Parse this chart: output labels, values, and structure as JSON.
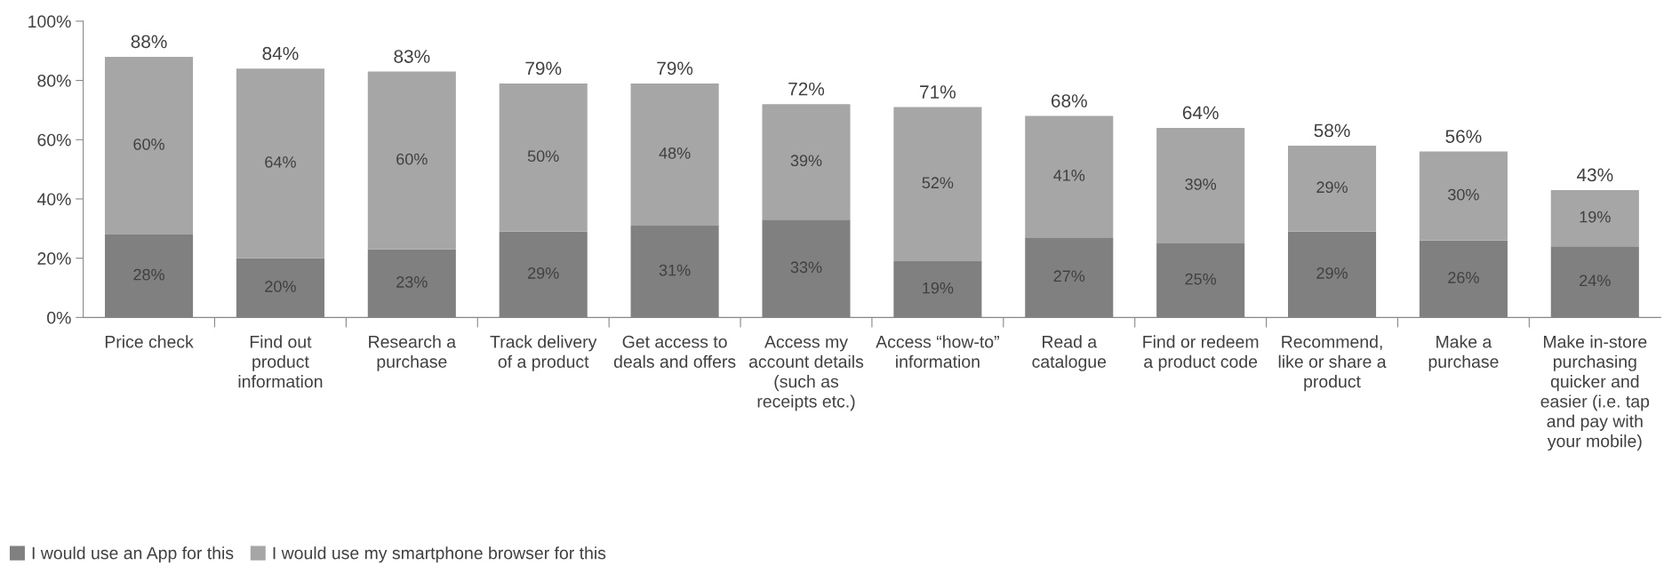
{
  "chart_data": {
    "type": "bar",
    "stacked": true,
    "categories": [
      "Price check",
      "Find out product information",
      "Research a purchase",
      "Track delivery of a product",
      "Get access to deals and offers",
      "Access my account details (such as receipts etc.)",
      "Access “how-to” information",
      "Read a catalogue",
      "Find or redeem a product code",
      "Recommend, like or share a product",
      "Make a purchase",
      "Make in-store purchasing quicker and easier (i.e. tap and pay with your mobile)"
    ],
    "series": [
      {
        "name": "I would use an App for this",
        "color": "#808080",
        "values": [
          28,
          20,
          23,
          29,
          31,
          33,
          19,
          27,
          25,
          29,
          26,
          24
        ],
        "value_labels": [
          "28%",
          "20%",
          "23%",
          "29%",
          "31%",
          "33%",
          "19%",
          "27%",
          "25%",
          "29%",
          "26%",
          "24%"
        ]
      },
      {
        "name": "I would use my smartphone browser for this",
        "color": "#a6a6a6",
        "values": [
          60,
          64,
          60,
          50,
          48,
          39,
          52,
          41,
          39,
          29,
          30,
          19
        ],
        "value_labels": [
          "60%",
          "64%",
          "60%",
          "50%",
          "48%",
          "39%",
          "52%",
          "41%",
          "39%",
          "29%",
          "30%",
          "19%"
        ]
      }
    ],
    "totals": [
      "88%",
      "84%",
      "83%",
      "79%",
      "79%",
      "72%",
      "71%",
      "68%",
      "64%",
      "58%",
      "56%",
      "43%"
    ],
    "ylim": [
      0,
      100
    ],
    "yticks": [
      {
        "value": 0,
        "label": "0%"
      },
      {
        "value": 20,
        "label": "20%"
      },
      {
        "value": 40,
        "label": "40%"
      },
      {
        "value": 60,
        "label": "60%"
      },
      {
        "value": 80,
        "label": "80%"
      },
      {
        "value": 100,
        "label": "100%"
      }
    ],
    "grid": false,
    "legend": "bottom left"
  }
}
